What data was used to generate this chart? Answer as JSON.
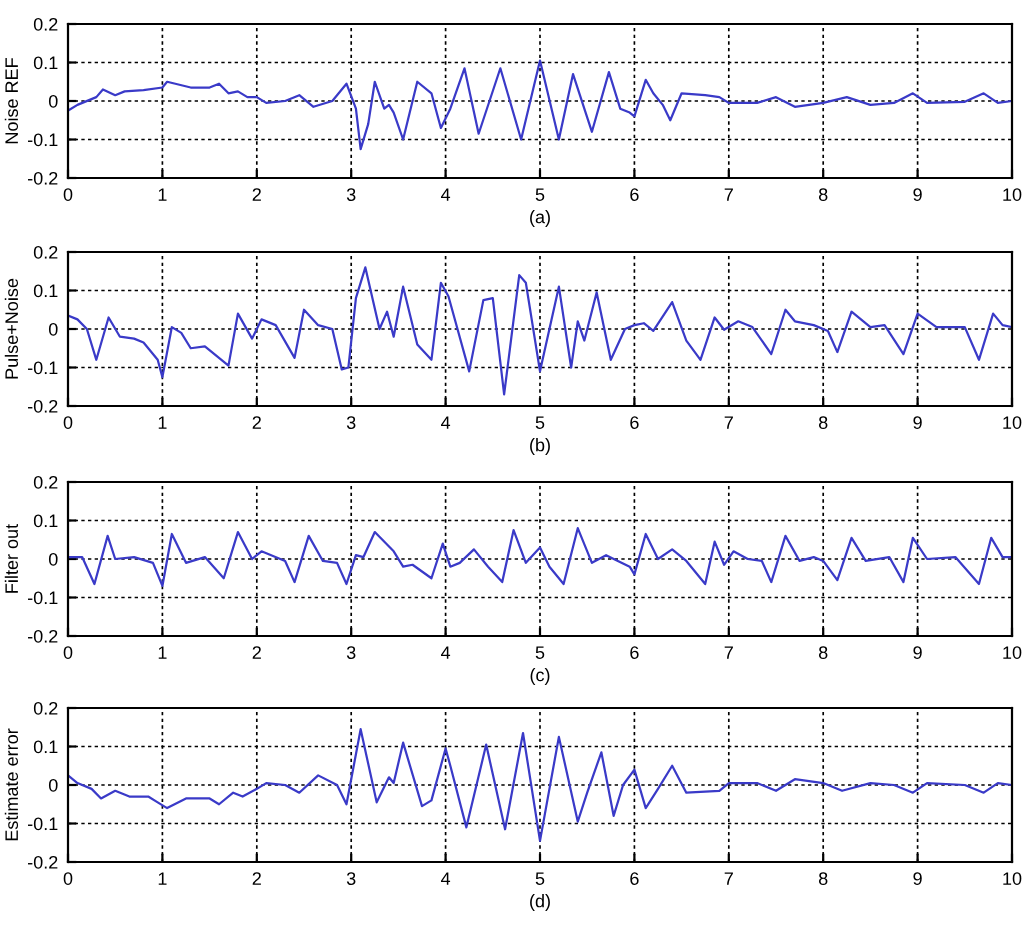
{
  "chart_data": [
    {
      "type": "line",
      "xlabel": "(a)",
      "ylabel": "Noise REF",
      "xlim": [
        0,
        10
      ],
      "ylim": [
        -0.2,
        0.2
      ],
      "xticks": [
        0,
        1,
        2,
        3,
        4,
        5,
        6,
        7,
        8,
        9,
        10
      ],
      "yticks": [
        -0.2,
        -0.1,
        0,
        0.1,
        0.2
      ],
      "grid": true,
      "line_style": "solid",
      "series": [
        {
          "color": "#3a3ac8",
          "x": [
            0,
            0.1,
            0.3,
            0.37,
            0.5,
            0.6,
            0.8,
            1.0,
            1.05,
            1.3,
            1.5,
            1.6,
            1.7,
            1.8,
            1.9,
            2.0,
            2.1,
            2.3,
            2.45,
            2.6,
            2.8,
            2.95,
            3.05,
            3.1,
            3.18,
            3.25,
            3.35,
            3.4,
            3.45,
            3.55,
            3.7,
            3.85,
            3.95,
            4.05,
            4.2,
            4.35,
            4.58,
            4.8,
            5.0,
            5.2,
            5.35,
            5.55,
            5.73,
            5.85,
            5.95,
            6.0,
            6.12,
            6.2,
            6.3,
            6.38,
            6.5,
            6.75,
            6.9,
            7.0,
            7.3,
            7.5,
            7.7,
            8.0,
            8.25,
            8.5,
            8.75,
            8.95,
            9.1,
            9.5,
            9.7,
            9.85,
            10
          ],
          "values": [
            -0.025,
            -0.01,
            0.01,
            0.03,
            0.015,
            0.025,
            0.028,
            0.035,
            0.05,
            0.035,
            0.035,
            0.045,
            0.02,
            0.025,
            0.01,
            0.01,
            -0.005,
            0.0,
            0.015,
            -0.015,
            0.0,
            0.045,
            -0.02,
            -0.125,
            -0.06,
            0.05,
            -0.02,
            -0.01,
            -0.03,
            -0.1,
            0.05,
            0.02,
            -0.07,
            -0.02,
            0.085,
            -0.085,
            0.085,
            -0.1,
            0.105,
            -0.1,
            0.07,
            -0.08,
            0.075,
            -0.02,
            -0.03,
            -0.04,
            0.055,
            0.02,
            -0.01,
            -0.05,
            0.02,
            0.015,
            0.01,
            -0.005,
            -0.005,
            0.01,
            -0.015,
            -0.005,
            0.01,
            -0.01,
            -0.005,
            0.02,
            -0.005,
            -0.002,
            0.02,
            -0.005,
            0.0
          ]
        }
      ]
    },
    {
      "type": "line",
      "xlabel": "(b)",
      "ylabel": "Pulse+Noise",
      "xlim": [
        0,
        10
      ],
      "ylim": [
        -0.2,
        0.2
      ],
      "xticks": [
        0,
        1,
        2,
        3,
        4,
        5,
        6,
        7,
        8,
        9,
        10
      ],
      "yticks": [
        -0.2,
        -0.1,
        0,
        0.1,
        0.2
      ],
      "grid": true,
      "line_style": "solid",
      "series": [
        {
          "color": "#3a3ac8",
          "x": [
            0,
            0.1,
            0.2,
            0.3,
            0.43,
            0.55,
            0.7,
            0.8,
            0.95,
            1.0,
            1.1,
            1.2,
            1.3,
            1.45,
            1.7,
            1.8,
            1.95,
            2.05,
            2.2,
            2.4,
            2.5,
            2.65,
            2.8,
            2.9,
            2.97,
            3.05,
            3.15,
            3.3,
            3.38,
            3.45,
            3.55,
            3.7,
            3.85,
            3.95,
            4.03,
            4.25,
            4.4,
            4.5,
            4.62,
            4.78,
            4.85,
            5.0,
            5.2,
            5.33,
            5.4,
            5.47,
            5.6,
            5.75,
            5.9,
            6.0,
            6.1,
            6.2,
            6.4,
            6.55,
            6.7,
            6.85,
            6.95,
            7.1,
            7.25,
            7.45,
            7.6,
            7.7,
            7.9,
            8.05,
            8.15,
            8.3,
            8.5,
            8.65,
            8.85,
            9.0,
            9.2,
            9.5,
            9.65,
            9.8,
            9.9,
            10
          ],
          "values": [
            0.035,
            0.025,
            0.0,
            -0.08,
            0.03,
            -0.02,
            -0.025,
            -0.035,
            -0.08,
            -0.125,
            0.005,
            -0.01,
            -0.05,
            -0.045,
            -0.095,
            0.04,
            -0.025,
            0.025,
            0.01,
            -0.075,
            0.05,
            0.01,
            0.0,
            -0.105,
            -0.1,
            0.08,
            0.16,
            0.0,
            0.045,
            -0.02,
            0.11,
            -0.04,
            -0.08,
            0.12,
            0.085,
            -0.11,
            0.075,
            0.08,
            -0.17,
            0.14,
            0.12,
            -0.11,
            0.11,
            -0.1,
            0.02,
            -0.03,
            0.095,
            -0.08,
            0.0,
            0.01,
            0.015,
            -0.005,
            0.07,
            -0.03,
            -0.08,
            0.03,
            -0.002,
            0.02,
            0.005,
            -0.065,
            0.05,
            0.02,
            0.01,
            -0.005,
            -0.06,
            0.045,
            0.005,
            0.01,
            -0.065,
            0.04,
            0.005,
            0.005,
            -0.08,
            0.04,
            0.01,
            0.005
          ]
        }
      ]
    },
    {
      "type": "line",
      "xlabel": "(c)",
      "ylabel": "Filter out",
      "xlim": [
        0,
        10
      ],
      "ylim": [
        -0.2,
        0.2
      ],
      "xticks": [
        0,
        1,
        2,
        3,
        4,
        5,
        6,
        7,
        8,
        9,
        10
      ],
      "yticks": [
        -0.2,
        -0.1,
        0,
        0.1,
        0.2
      ],
      "grid": true,
      "line_style": "solid",
      "series": [
        {
          "color": "#3a3ac8",
          "x": [
            0,
            0.15,
            0.28,
            0.42,
            0.5,
            0.7,
            0.9,
            1.0,
            1.1,
            1.25,
            1.45,
            1.65,
            1.8,
            1.95,
            2.05,
            2.3,
            2.4,
            2.55,
            2.7,
            2.85,
            2.95,
            3.05,
            3.13,
            3.25,
            3.45,
            3.55,
            3.65,
            3.85,
            3.97,
            4.05,
            4.15,
            4.3,
            4.45,
            4.6,
            4.72,
            4.85,
            5.0,
            5.1,
            5.25,
            5.4,
            5.55,
            5.7,
            5.95,
            6.0,
            6.12,
            6.25,
            6.4,
            6.55,
            6.75,
            6.85,
            6.95,
            7.05,
            7.2,
            7.35,
            7.45,
            7.6,
            7.75,
            7.9,
            8.0,
            8.15,
            8.3,
            8.45,
            8.7,
            8.85,
            8.95,
            9.1,
            9.4,
            9.65,
            9.78,
            9.9,
            10
          ],
          "values": [
            0.005,
            0.005,
            -0.065,
            0.06,
            0.0,
            0.005,
            -0.01,
            -0.07,
            0.065,
            -0.01,
            0.005,
            -0.05,
            0.07,
            0.0,
            0.02,
            -0.005,
            -0.06,
            0.06,
            -0.005,
            -0.01,
            -0.065,
            0.01,
            0.005,
            0.07,
            0.02,
            -0.02,
            -0.015,
            -0.05,
            0.04,
            -0.02,
            -0.01,
            0.025,
            -0.02,
            -0.06,
            0.075,
            -0.01,
            0.03,
            -0.02,
            -0.065,
            0.08,
            -0.01,
            0.01,
            -0.02,
            -0.04,
            0.065,
            0.0,
            0.025,
            -0.005,
            -0.065,
            0.045,
            -0.015,
            0.02,
            0.0,
            -0.005,
            -0.06,
            0.06,
            -0.005,
            0.005,
            -0.005,
            -0.055,
            0.055,
            -0.005,
            0.005,
            -0.06,
            0.055,
            0.0,
            0.005,
            -0.065,
            0.055,
            0.005,
            0.005
          ]
        }
      ]
    },
    {
      "type": "line",
      "xlabel": "(d)",
      "ylabel": "Estimate error",
      "xlim": [
        0,
        10
      ],
      "ylim": [
        -0.2,
        0.2
      ],
      "xticks": [
        0,
        1,
        2,
        3,
        4,
        5,
        6,
        7,
        8,
        9,
        10
      ],
      "yticks": [
        -0.2,
        -0.1,
        0,
        0.1,
        0.2
      ],
      "grid": true,
      "line_style": "solid",
      "series": [
        {
          "color": "#3a3ac8",
          "x": [
            0,
            0.1,
            0.25,
            0.35,
            0.5,
            0.65,
            0.85,
            0.95,
            1.05,
            1.25,
            1.5,
            1.6,
            1.75,
            1.85,
            2.0,
            2.1,
            2.3,
            2.45,
            2.65,
            2.85,
            2.95,
            3.1,
            3.27,
            3.4,
            3.45,
            3.55,
            3.75,
            3.85,
            4.0,
            4.05,
            4.22,
            4.43,
            4.63,
            4.82,
            5.0,
            5.2,
            5.4,
            5.5,
            5.65,
            5.78,
            5.88,
            6.0,
            6.12,
            6.25,
            6.4,
            6.55,
            6.9,
            7.0,
            7.3,
            7.5,
            7.7,
            8.0,
            8.2,
            8.5,
            8.75,
            8.95,
            9.1,
            9.5,
            9.7,
            9.85,
            10
          ],
          "values": [
            0.025,
            0.005,
            -0.01,
            -0.035,
            -0.015,
            -0.03,
            -0.03,
            -0.045,
            -0.06,
            -0.035,
            -0.035,
            -0.05,
            -0.02,
            -0.03,
            -0.01,
            0.005,
            0.0,
            -0.02,
            0.025,
            0.0,
            -0.05,
            0.145,
            -0.045,
            0.02,
            0.005,
            0.11,
            -0.055,
            -0.04,
            0.095,
            0.05,
            -0.11,
            0.105,
            -0.115,
            0.135,
            -0.145,
            0.125,
            -0.095,
            -0.02,
            0.085,
            -0.08,
            0.0,
            0.04,
            -0.06,
            -0.01,
            0.05,
            -0.02,
            -0.015,
            0.005,
            0.005,
            -0.015,
            0.015,
            0.005,
            -0.015,
            0.005,
            0.0,
            -0.02,
            0.005,
            0.0,
            -0.02,
            0.005,
            0.0
          ]
        }
      ]
    }
  ]
}
